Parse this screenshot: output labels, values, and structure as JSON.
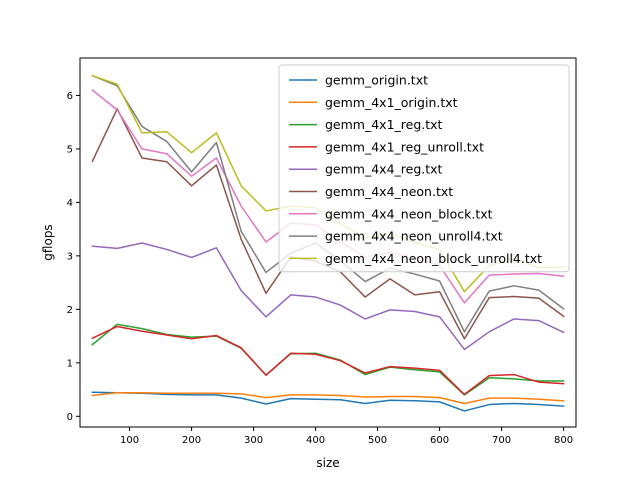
{
  "chart_data": {
    "type": "line",
    "title": "",
    "xlabel": "size",
    "ylabel": "gflops",
    "xlim": [
      20,
      820
    ],
    "ylim": [
      -0.2,
      6.7
    ],
    "xticks": [
      100,
      200,
      300,
      400,
      500,
      600,
      700,
      800
    ],
    "yticks": [
      0,
      1,
      2,
      3,
      4,
      5,
      6
    ],
    "grid": false,
    "legend_position": "top-right",
    "x": [
      40,
      80,
      120,
      160,
      200,
      240,
      280,
      320,
      360,
      400,
      440,
      480,
      520,
      560,
      600,
      640,
      680,
      720,
      760,
      800
    ],
    "series": [
      {
        "name": "gemm_origin.txt",
        "color": "#1f77b4",
        "values": [
          0.45,
          0.44,
          0.43,
          0.41,
          0.4,
          0.4,
          0.34,
          0.23,
          0.33,
          0.32,
          0.31,
          0.24,
          0.3,
          0.29,
          0.27,
          0.1,
          0.22,
          0.24,
          0.22,
          0.19
        ]
      },
      {
        "name": "gemm_4x1_origin.txt",
        "color": "#ff7f0e",
        "values": [
          0.39,
          0.44,
          0.44,
          0.43,
          0.43,
          0.43,
          0.42,
          0.35,
          0.4,
          0.4,
          0.39,
          0.36,
          0.37,
          0.37,
          0.35,
          0.24,
          0.34,
          0.34,
          0.32,
          0.29
        ]
      },
      {
        "name": "gemm_4x1_reg.txt",
        "color": "#2ca02c",
        "values": [
          1.34,
          1.72,
          1.64,
          1.53,
          1.48,
          1.5,
          1.27,
          0.77,
          1.17,
          1.18,
          1.05,
          0.78,
          0.92,
          0.87,
          0.83,
          0.4,
          0.72,
          0.7,
          0.66,
          0.66
        ]
      },
      {
        "name": "gemm_4x1_reg_unroll.txt",
        "color": "#d62728",
        "values": [
          1.46,
          1.68,
          1.59,
          1.52,
          1.45,
          1.51,
          1.28,
          0.77,
          1.18,
          1.16,
          1.04,
          0.81,
          0.93,
          0.9,
          0.86,
          0.41,
          0.76,
          0.78,
          0.64,
          0.61
        ]
      },
      {
        "name": "gemm_4x4_reg.txt",
        "color": "#9467bd",
        "values": [
          3.18,
          3.14,
          3.24,
          3.12,
          2.97,
          3.15,
          2.35,
          1.86,
          2.27,
          2.23,
          2.08,
          1.82,
          1.99,
          1.96,
          1.86,
          1.25,
          1.58,
          1.82,
          1.79,
          1.57
        ]
      },
      {
        "name": "gemm_4x4_neon.txt",
        "color": "#8c564b",
        "values": [
          4.77,
          5.75,
          4.83,
          4.76,
          4.31,
          4.7,
          3.31,
          2.3,
          2.98,
          2.9,
          2.7,
          2.23,
          2.57,
          2.27,
          2.33,
          1.45,
          2.22,
          2.24,
          2.21,
          1.87
        ]
      },
      {
        "name": "gemm_4x4_neon_block.txt",
        "color": "#e377c2",
        "values": [
          6.1,
          5.73,
          5.0,
          4.91,
          4.49,
          4.83,
          3.93,
          3.26,
          3.61,
          3.58,
          3.27,
          2.98,
          3.06,
          2.97,
          2.82,
          2.12,
          2.64,
          2.66,
          2.67,
          2.62
        ]
      },
      {
        "name": "gemm_4x4_neon_unroll4.txt",
        "color": "#7f7f7f",
        "values": [
          6.37,
          6.18,
          5.42,
          5.14,
          4.57,
          5.12,
          3.46,
          2.69,
          3.05,
          3.24,
          2.91,
          2.52,
          2.77,
          2.66,
          2.53,
          1.58,
          2.34,
          2.44,
          2.36,
          2.01
        ]
      },
      {
        "name": "gemm_4x4_neon_block_unroll4.txt",
        "color": "#bcbd22",
        "values": [
          6.37,
          6.21,
          5.3,
          5.32,
          4.93,
          5.3,
          4.31,
          3.84,
          3.93,
          3.9,
          3.6,
          3.33,
          3.42,
          3.25,
          3.12,
          2.33,
          2.82,
          2.94,
          2.78,
          2.79
        ]
      }
    ]
  }
}
